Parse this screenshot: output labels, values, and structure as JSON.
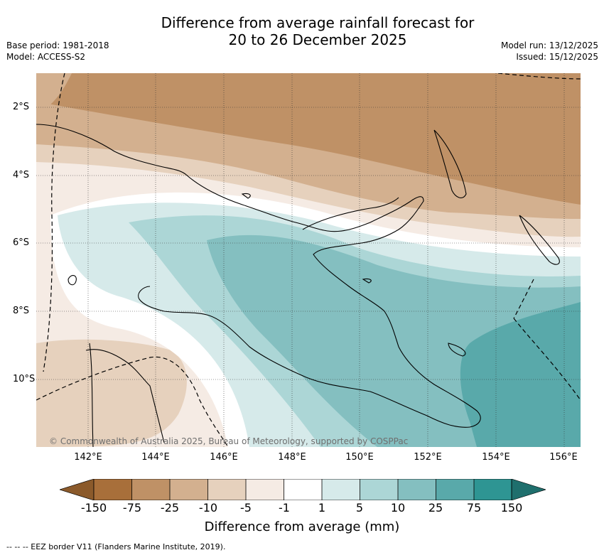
{
  "title": {
    "line1": "Difference from average rainfall forecast for",
    "line2": "20 to 26 December 2025"
  },
  "meta": {
    "base_period": "Base period: 1981-2018",
    "model": "Model: ACCESS-S2",
    "model_run": "Model run: 13/12/2025",
    "issued": "Issued: 15/12/2025"
  },
  "axes": {
    "lat_ticks": [
      "2°S",
      "4°S",
      "6°S",
      "8°S",
      "10°S"
    ],
    "lon_ticks": [
      "142°E",
      "144°E",
      "146°E",
      "148°E",
      "150°E",
      "152°E",
      "154°E",
      "156°E"
    ]
  },
  "copyright": "© Commonwealth of Australia 2025, Bureau of Meteorology, supported by COSPPac",
  "colorbar": {
    "title": "Difference from average (mm)",
    "labels": [
      "-150",
      "-75",
      "-25",
      "-10",
      "-5",
      "-1",
      "1",
      "5",
      "10",
      "25",
      "75",
      "150"
    ],
    "colors": [
      "#a86f3a",
      "#bf9166",
      "#d3b08f",
      "#e6d1bd",
      "#f5ebe4",
      "#ffffff",
      "#d6eaea",
      "#acd6d6",
      "#84bfc0",
      "#59a9aa",
      "#2e9593",
      "#1f6f6d",
      "#8b5a2b"
    ]
  },
  "footnote": "-- -- -- EEZ border V11 (Flanders Marine Institute, 2019)."
}
